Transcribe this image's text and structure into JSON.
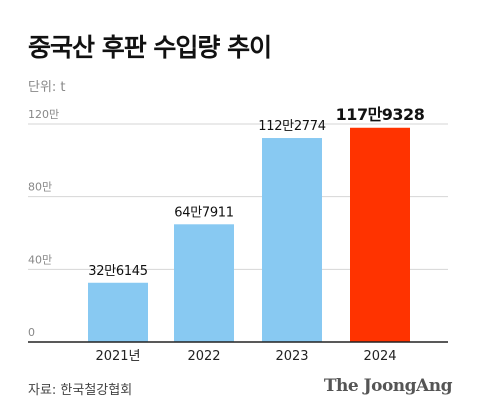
{
  "title": "중국산 후판 수입량 추이",
  "unit": "단위: t",
  "source": "자료: 한국철강협회",
  "brand": "The JoongAng",
  "chart_data": {
    "type": "bar",
    "categories": [
      "2021년",
      "2022",
      "2023",
      "2024"
    ],
    "values": [
      326145,
      647911,
      1122774,
      1179328
    ],
    "value_labels": [
      "32만6145",
      "64만7911",
      "112만2774",
      "117만9328"
    ],
    "ylim": [
      0,
      1200000
    ],
    "yticks": [
      0,
      400000,
      800000,
      1200000
    ],
    "ytick_labels": [
      "0",
      "40만",
      "80만",
      "120만"
    ],
    "highlight_index": 3,
    "colors": {
      "default": "#88C9F2",
      "highlight": "#FF3300",
      "grid": "#D6D6D6",
      "axis": "#222222"
    },
    "grid": true,
    "legend": "none"
  }
}
